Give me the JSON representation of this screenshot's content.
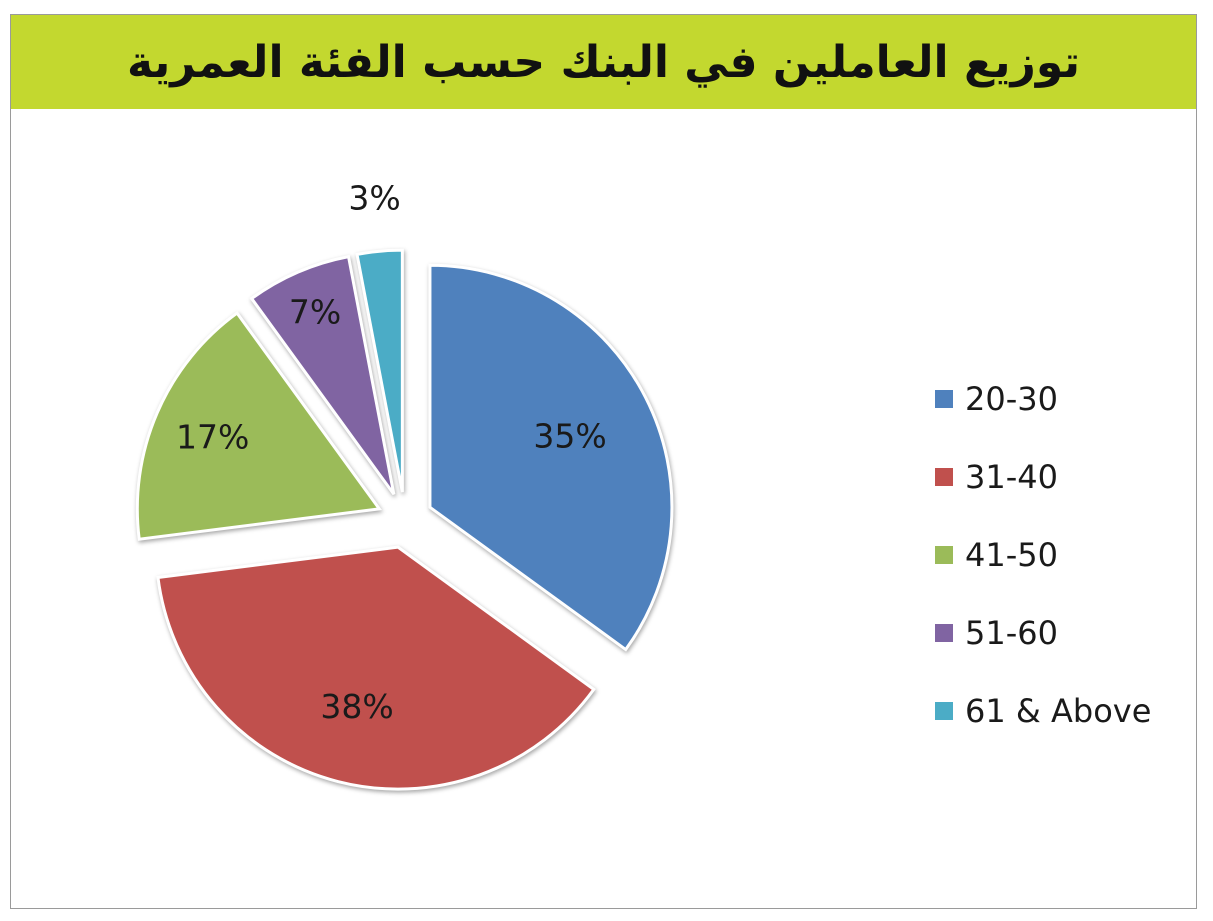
{
  "header": {
    "bg_color": "#c3d82f"
  },
  "chart_data": {
    "type": "pie",
    "title": "توزيع العاملين في البنك حسب الفئة العمرية",
    "categories": [
      "20-30",
      "31-40",
      "41-50",
      "51-60",
      "61 & Above"
    ],
    "values": [
      35,
      38,
      17,
      7,
      3
    ],
    "labels": [
      "35%",
      "38%",
      "17%",
      "7%",
      "3%"
    ],
    "colors": [
      "#4f81bd",
      "#c0504d",
      "#9bbb59",
      "#8064a2",
      "#4bacc6"
    ],
    "exploded": true,
    "start_angle_deg": 0,
    "direction": "clockwise",
    "legend_position": "right"
  }
}
